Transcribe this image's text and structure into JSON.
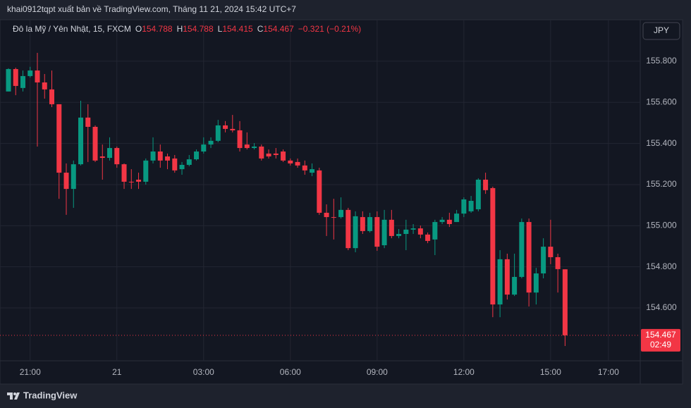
{
  "header": {
    "byline": "khai0912tqpt xuất bản về TradingView.com, Tháng 11 21, 2024 15:42 UTC+7",
    "brand": "TradingView"
  },
  "chart_data": {
    "type": "candlestick",
    "title": "Đô la Mỹ / Yên Nhật, 15, FXCM",
    "ohlc_letters": [
      "O",
      "H",
      "L",
      "C"
    ],
    "change_label": "−0.321 (−0.21%)",
    "currency": "JPY",
    "countdown": "02:49",
    "up_color": "#089981",
    "down_color": "#f23645",
    "grid": true,
    "categories": [
      null,
      null,
      null,
      null,
      null,
      null,
      null,
      null,
      null,
      null,
      null,
      null,
      null,
      null,
      null,
      null,
      null,
      null,
      null,
      null,
      null,
      null,
      null,
      null,
      null,
      null,
      null,
      null,
      null,
      null,
      null,
      null,
      null,
      null,
      null,
      null,
      null,
      null,
      null,
      null,
      null,
      null,
      null,
      null,
      null,
      null,
      null,
      null,
      null,
      null,
      null,
      null,
      null,
      null,
      null,
      null,
      null,
      null,
      null,
      null,
      null,
      null,
      null,
      null,
      null,
      null,
      null,
      null,
      null,
      null,
      null,
      null,
      null,
      null,
      null,
      null,
      null,
      null
    ],
    "xlim": [
      -1.17,
      87.4
    ],
    "xticks": [
      {
        "value": 3,
        "label": "21:00"
      },
      {
        "value": 15,
        "label": "21"
      },
      {
        "value": 27,
        "label": "03:00"
      },
      {
        "value": 39,
        "label": "06:00"
      },
      {
        "value": 51,
        "label": "09:00"
      },
      {
        "value": 63,
        "label": "12:00"
      },
      {
        "value": 75,
        "label": "15:00"
      },
      {
        "value": 83,
        "label": "17:00"
      }
    ],
    "ylim": [
      154.343,
      156.002
    ],
    "yticks": [
      {
        "value": 154.6,
        "label": "154.600"
      },
      {
        "value": 154.8,
        "label": "154.800"
      },
      {
        "value": 155.0,
        "label": "155.000"
      },
      {
        "value": 155.2,
        "label": "155.200"
      },
      {
        "value": 155.4,
        "label": "155.400"
      },
      {
        "value": 155.6,
        "label": "155.600"
      },
      {
        "value": 155.8,
        "label": "155.800"
      }
    ],
    "series": [
      {
        "open": [
          155.653,
          155.762,
          155.67,
          155.728,
          155.755,
          155.697,
          155.663,
          155.591,
          155.258,
          155.179,
          155.299,
          155.526,
          155.481,
          155.337,
          155.33,
          155.378,
          155.299,
          155.214,
          155.224,
          155.214,
          155.317,
          155.361,
          155.337,
          155.327,
          155.275,
          155.296,
          155.323,
          155.361,
          155.395,
          155.413,
          155.488,
          155.471,
          155.464,
          155.395,
          155.378,
          155.385,
          155.351,
          155.351,
          155.361,
          155.317,
          155.31,
          155.293,
          155.258,
          155.269,
          155.063,
          155.042,
          155.042,
          155.077,
          154.891,
          155.042,
          154.974,
          155.042,
          154.905,
          155.029,
          154.95,
          154.96,
          154.981,
          154.987,
          154.957,
          154.933,
          155.018,
          155.029,
          155.018,
          155.059,
          155.07,
          155.08,
          155.224,
          155.183,
          154.617,
          154.837,
          154.665,
          154.751,
          155.018,
          154.675,
          154.768,
          154.898,
          154.847,
          154.788
        ],
        "high": [
          155.766,
          155.769,
          155.755,
          155.773,
          155.841,
          155.738,
          155.755,
          155.591,
          155.303,
          155.317,
          155.608,
          155.591,
          155.488,
          155.395,
          155.43,
          155.385,
          155.303,
          155.275,
          155.258,
          155.327,
          155.43,
          155.395,
          155.351,
          155.344,
          155.31,
          155.344,
          155.371,
          155.43,
          155.43,
          155.515,
          155.509,
          155.539,
          155.509,
          155.454,
          155.402,
          155.395,
          155.371,
          155.378,
          155.371,
          155.327,
          155.327,
          155.317,
          155.303,
          155.282,
          155.104,
          155.131,
          155.138,
          155.087,
          155.07,
          155.07,
          155.063,
          155.07,
          155.077,
          155.077,
          154.984,
          155.029,
          155.008,
          155.001,
          154.967,
          155.029,
          155.042,
          155.063,
          155.077,
          155.138,
          155.145,
          155.231,
          155.258,
          155.19,
          154.881,
          154.864,
          154.864,
          155.035,
          155.035,
          154.795,
          154.939,
          155.029,
          154.864,
          154.788
        ],
        "low": [
          155.653,
          155.635,
          155.653,
          155.721,
          155.385,
          155.618,
          155.577,
          155.131,
          155.053,
          155.087,
          155.293,
          155.31,
          155.31,
          155.224,
          155.317,
          155.282,
          155.179,
          155.179,
          155.179,
          155.2,
          155.303,
          155.282,
          155.275,
          155.258,
          155.248,
          155.289,
          155.317,
          155.351,
          155.378,
          155.406,
          155.454,
          155.454,
          155.361,
          155.371,
          155.371,
          155.317,
          155.327,
          155.327,
          155.31,
          155.293,
          155.282,
          155.248,
          155.241,
          155.053,
          154.95,
          154.933,
          155.035,
          154.881,
          154.871,
          154.96,
          154.967,
          154.878,
          154.891,
          154.939,
          154.939,
          154.881,
          154.96,
          154.939,
          154.915,
          154.857,
          155.008,
          154.994,
          155.018,
          155.042,
          155.063,
          155.07,
          155.155,
          154.555,
          154.555,
          154.641,
          154.658,
          154.744,
          154.607,
          154.617,
          154.744,
          154.813,
          154.675,
          154.415
        ],
        "close": [
          155.762,
          155.68,
          155.728,
          155.755,
          155.697,
          155.663,
          155.591,
          155.258,
          155.179,
          155.299,
          155.526,
          155.481,
          155.317,
          155.33,
          155.378,
          155.299,
          155.214,
          155.211,
          155.214,
          155.317,
          155.361,
          155.317,
          155.317,
          155.269,
          155.296,
          155.323,
          155.361,
          155.395,
          155.413,
          155.488,
          155.471,
          155.464,
          155.378,
          155.378,
          155.385,
          155.327,
          155.337,
          155.344,
          155.317,
          155.303,
          155.293,
          155.269,
          155.275,
          155.063,
          155.042,
          155.039,
          155.077,
          154.891,
          155.046,
          154.974,
          155.042,
          154.898,
          155.029,
          154.95,
          154.96,
          154.981,
          154.987,
          154.957,
          154.926,
          155.018,
          155.029,
          155.008,
          155.059,
          155.128,
          155.121,
          155.224,
          155.173,
          154.617,
          154.837,
          154.665,
          154.751,
          155.018,
          154.675,
          154.768,
          154.898,
          154.847,
          154.789,
          154.467
        ]
      }
    ]
  }
}
